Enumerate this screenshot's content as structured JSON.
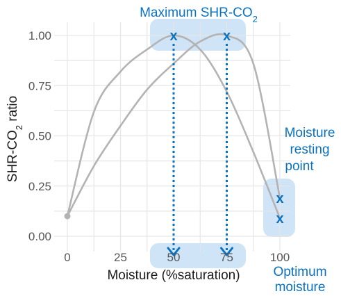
{
  "chart_data": {
    "type": "line",
    "title": "",
    "xlabel": "Moisture (%saturation)",
    "ylabel": "SHR-CO₂ ratio",
    "xlim": [
      0,
      100
    ],
    "ylim": [
      0,
      1
    ],
    "x_ticks": [
      "0",
      "25",
      "50",
      "75",
      "100"
    ],
    "y_ticks": [
      "0.00",
      "0.25",
      "0.50",
      "0.75",
      "1.00"
    ],
    "grid": true,
    "legend": "none",
    "series": [
      {
        "x": [
          0,
          12.5,
          25,
          37.5,
          50,
          62.5,
          75,
          87.5,
          100
        ],
        "y": [
          0.1,
          0.62,
          0.82,
          0.93,
          1.0,
          0.93,
          0.72,
          0.42,
          0.09
        ]
      },
      {
        "x": [
          0,
          12.5,
          25,
          37.5,
          50,
          62.5,
          75,
          87.5,
          100
        ],
        "y": [
          0.1,
          0.35,
          0.55,
          0.73,
          0.86,
          0.97,
          1.0,
          0.86,
          0.19
        ]
      }
    ],
    "start_point": {
      "x": 0,
      "y": 0.1
    },
    "markers": [
      {
        "x": 50,
        "y": 1.0,
        "label": "x"
      },
      {
        "x": 75,
        "y": 1.0,
        "label": "x"
      },
      {
        "x": 100,
        "y": 0.19,
        "label": "x"
      },
      {
        "x": 100,
        "y": 0.09,
        "label": "x"
      }
    ],
    "drop_lines_x": [
      50,
      75
    ],
    "annotations": {
      "maximum": "Maximum SHR-CO₂",
      "resting": [
        "Moisture",
        "resting",
        "point"
      ],
      "optimum": [
        "Optimum",
        "moisture"
      ]
    },
    "colors": {
      "curve": "#b3b3b3",
      "accent": "#0a72c0",
      "highlight": "#cfe4f6",
      "grid": "#e6e6e6"
    }
  }
}
